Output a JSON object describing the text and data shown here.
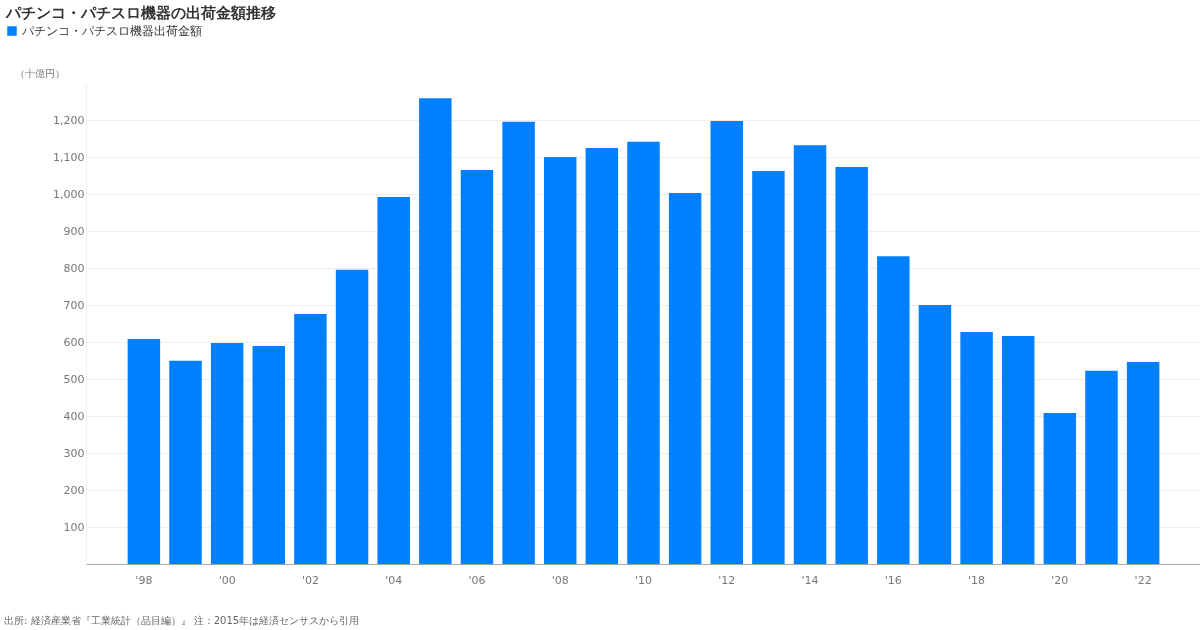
{
  "chart_data": {
    "type": "bar",
    "title": "パチンコ・パチスロ機器の出荷金額推移",
    "ylabel": "（十億円）",
    "categories": [
      "'98",
      null,
      "'00",
      null,
      "'02",
      null,
      "'04",
      null,
      "'06",
      null,
      "'08",
      null,
      "'10",
      null,
      "'12",
      null,
      "'14",
      null,
      "'16",
      null,
      "'18",
      null,
      "'20",
      null,
      "'22"
    ],
    "series": [
      {
        "name": "パチンコ・パチスロ機器出荷金額",
        "color": "#0080ff",
        "values": [
          608,
          549,
          597,
          589,
          676,
          795,
          992,
          1259,
          1065,
          1195,
          1100,
          1124,
          1141,
          1003,
          1197,
          1062,
          1132,
          1073,
          832,
          700,
          627,
          616,
          408,
          522,
          546
        ]
      }
    ],
    "ylim": [
      0,
      1300
    ],
    "yticks": [
      100,
      200,
      300,
      400,
      500,
      600,
      700,
      800,
      900,
      {
        "value": 1000,
        "label": "1,000"
      },
      {
        "value": 1100,
        "label": "1,100"
      },
      {
        "value": 1200,
        "label": "1,200"
      }
    ],
    "grid": "y",
    "legend": "top left",
    "annotations": [
      "出所: 経済産業省『工業統計（品目編）』 注：2015年は経済センサスから引用"
    ]
  }
}
